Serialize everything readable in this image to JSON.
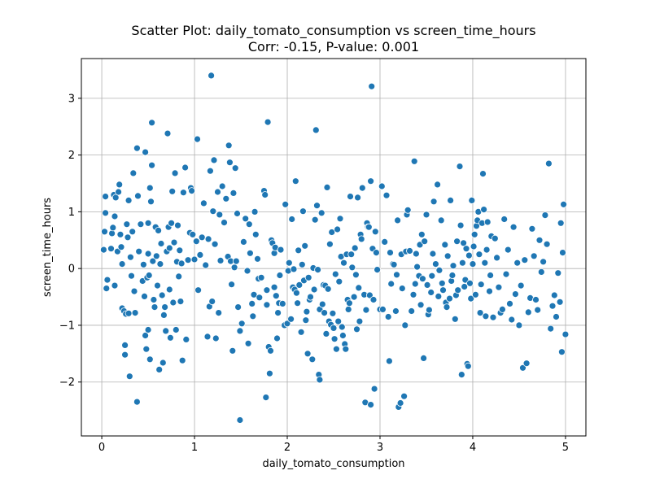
{
  "chart_data": {
    "type": "scatter",
    "title": "Scatter Plot: daily_tomato_consumption vs screen_time_hours",
    "subtitle": "Corr: -0.15, P-value: 0.001",
    "xlabel": "daily_tomato_consumption",
    "ylabel": "screen_time_hours",
    "xlim": [
      -0.22,
      5.22
    ],
    "ylim": [
      -2.95,
      3.7
    ],
    "xticks": [
      0,
      1,
      2,
      3,
      4,
      5
    ],
    "yticks": [
      -2,
      -1,
      0,
      1,
      2,
      3
    ],
    "grid": true,
    "point_color": "#1f77b4",
    "points": [
      [
        0.02,
        0.33
      ],
      [
        0.03,
        0.65
      ],
      [
        0.04,
        0.98
      ],
      [
        0.04,
        1.27
      ],
      [
        0.05,
        -0.35
      ],
      [
        0.06,
        -0.2
      ],
      [
        0.1,
        0.35
      ],
      [
        0.11,
        0.62
      ],
      [
        0.12,
        0.72
      ],
      [
        0.13,
        1.3
      ],
      [
        0.14,
        -0.3
      ],
      [
        0.14,
        0.92
      ],
      [
        0.15,
        1.25
      ],
      [
        0.17,
        0.3
      ],
      [
        0.18,
        1.35
      ],
      [
        0.19,
        1.48
      ],
      [
        0.2,
        0.6
      ],
      [
        0.21,
        0.38
      ],
      [
        0.22,
        0.08
      ],
      [
        0.22,
        -0.7
      ],
      [
        0.24,
        -0.75
      ],
      [
        0.25,
        -1.35
      ],
      [
        0.25,
        -1.52
      ],
      [
        0.26,
        -0.8
      ],
      [
        0.27,
        0.78
      ],
      [
        0.28,
        0.55
      ],
      [
        0.29,
        1.2
      ],
      [
        0.29,
        -0.79
      ],
      [
        0.3,
        -1.9
      ],
      [
        0.31,
        0.2
      ],
      [
        0.32,
        -0.13
      ],
      [
        0.33,
        0.65
      ],
      [
        0.34,
        1.68
      ],
      [
        0.35,
        -0.4
      ],
      [
        0.36,
        -0.78
      ],
      [
        0.38,
        2.12
      ],
      [
        0.38,
        -2.35
      ],
      [
        0.39,
        1.28
      ],
      [
        0.4,
        0.3
      ],
      [
        0.42,
        0.78
      ],
      [
        0.44,
        -0.22
      ],
      [
        0.45,
        0.07
      ],
      [
        0.46,
        -0.49
      ],
      [
        0.47,
        -1.18
      ],
      [
        0.47,
        2.05
      ],
      [
        0.48,
        -1.42
      ],
      [
        0.49,
        -0.16
      ],
      [
        0.5,
        0.26
      ],
      [
        0.5,
        -1.08
      ],
      [
        0.5,
        0.8
      ],
      [
        0.51,
        -0.12
      ],
      [
        0.52,
        1.42
      ],
      [
        0.52,
        -1.6
      ],
      [
        0.53,
        1.18
      ],
      [
        0.54,
        1.82
      ],
      [
        0.54,
        2.57
      ],
      [
        0.55,
        0.13
      ],
      [
        0.56,
        -0.55
      ],
      [
        0.57,
        -0.68
      ],
      [
        0.58,
        0.73
      ],
      [
        0.59,
        0.22
      ],
      [
        0.6,
        -0.3
      ],
      [
        0.61,
        0.67
      ],
      [
        0.62,
        -1.78
      ],
      [
        0.63,
        0.08
      ],
      [
        0.64,
        0.44
      ],
      [
        0.65,
        -0.47
      ],
      [
        0.66,
        -1.66
      ],
      [
        0.67,
        -0.82
      ],
      [
        0.68,
        -0.68
      ],
      [
        0.69,
        -1.1
      ],
      [
        0.7,
        0.3
      ],
      [
        0.71,
        2.38
      ],
      [
        0.72,
        0.73
      ],
      [
        0.73,
        0.36
      ],
      [
        0.73,
        -0.37
      ],
      [
        0.74,
        -1.22
      ],
      [
        0.75,
        0.8
      ],
      [
        0.76,
        1.36
      ],
      [
        0.77,
        -0.6
      ],
      [
        0.78,
        0.46
      ],
      [
        0.79,
        1.68
      ],
      [
        0.8,
        -1.08
      ],
      [
        0.81,
        0.12
      ],
      [
        0.82,
        0.76
      ],
      [
        0.83,
        -0.14
      ],
      [
        0.84,
        0.32
      ],
      [
        0.85,
        -0.58
      ],
      [
        0.86,
        0.09
      ],
      [
        0.87,
        -1.62
      ],
      [
        0.88,
        1.34
      ],
      [
        0.9,
        1.78
      ],
      [
        0.91,
        -1.25
      ],
      [
        0.93,
        0.15
      ],
      [
        0.95,
        0.63
      ],
      [
        0.96,
        1.42
      ],
      [
        0.97,
        1.37
      ],
      [
        0.98,
        0.6
      ],
      [
        1.0,
        0.16
      ],
      [
        1.02,
        0.48
      ],
      [
        1.03,
        2.28
      ],
      [
        1.04,
        -0.38
      ],
      [
        1.06,
        0.24
      ],
      [
        1.08,
        0.55
      ],
      [
        1.1,
        1.15
      ],
      [
        1.12,
        0.06
      ],
      [
        1.14,
        -1.2
      ],
      [
        1.15,
        0.52
      ],
      [
        1.16,
        -0.67
      ],
      [
        1.17,
        1.72
      ],
      [
        1.18,
        3.4
      ],
      [
        1.19,
        -0.58
      ],
      [
        1.2,
        1.01
      ],
      [
        1.21,
        1.91
      ],
      [
        1.22,
        0.43
      ],
      [
        1.23,
        -1.23
      ],
      [
        1.25,
        1.35
      ],
      [
        1.26,
        -0.78
      ],
      [
        1.27,
        0.95
      ],
      [
        1.28,
        0.14
      ],
      [
        1.3,
        1.45
      ],
      [
        1.32,
        0.81
      ],
      [
        1.34,
        1.23
      ],
      [
        1.36,
        0.21
      ],
      [
        1.37,
        2.17
      ],
      [
        1.38,
        1.87
      ],
      [
        1.39,
        0.13
      ],
      [
        1.4,
        -0.28
      ],
      [
        1.41,
        -1.45
      ],
      [
        1.42,
        1.33
      ],
      [
        1.43,
        0.02
      ],
      [
        1.44,
        1.77
      ],
      [
        1.45,
        0.13
      ],
      [
        1.46,
        0.97
      ],
      [
        1.47,
        -0.68
      ],
      [
        1.49,
        -1.1
      ],
      [
        1.49,
        -2.67
      ],
      [
        1.51,
        -0.97
      ],
      [
        1.53,
        0.47
      ],
      [
        1.55,
        0.88
      ],
      [
        1.57,
        -0.04
      ],
      [
        1.58,
        -1.32
      ],
      [
        1.59,
        0.78
      ],
      [
        1.6,
        0.27
      ],
      [
        1.62,
        -0.62
      ],
      [
        1.63,
        -0.84
      ],
      [
        1.64,
        -0.46
      ],
      [
        1.65,
        1.0
      ],
      [
        1.66,
        0.6
      ],
      [
        1.68,
        0.17
      ],
      [
        1.69,
        -0.18
      ],
      [
        1.7,
        -0.51
      ],
      [
        1.72,
        -0.16
      ],
      [
        1.75,
        1.37
      ],
      [
        1.76,
        1.3
      ],
      [
        1.77,
        -2.27
      ],
      [
        1.78,
        -0.38
      ],
      [
        1.78,
        -0.64
      ],
      [
        1.79,
        2.58
      ],
      [
        1.8,
        -1.38
      ],
      [
        1.81,
        -1.85
      ],
      [
        1.82,
        -1.45
      ],
      [
        1.83,
        0.5
      ],
      [
        1.84,
        0.45
      ],
      [
        1.86,
        -0.33
      ],
      [
        1.86,
        0.27
      ],
      [
        1.87,
        0.37
      ],
      [
        1.88,
        -0.48
      ],
      [
        1.89,
        -1.23
      ],
      [
        1.9,
        -0.78
      ],
      [
        1.91,
        -0.61
      ],
      [
        1.92,
        -0.12
      ],
      [
        1.93,
        0.33
      ],
      [
        1.95,
        -0.62
      ],
      [
        1.97,
        -1.0
      ],
      [
        1.98,
        1.13
      ],
      [
        2.0,
        -0.97
      ],
      [
        2.01,
        -0.04
      ],
      [
        2.02,
        0.1
      ],
      [
        2.04,
        -0.89
      ],
      [
        2.05,
        0.87
      ],
      [
        2.06,
        -0.33
      ],
      [
        2.07,
        -0.01
      ],
      [
        2.08,
        -0.37
      ],
      [
        2.09,
        1.54
      ],
      [
        2.1,
        -0.43
      ],
      [
        2.11,
        -0.61
      ],
      [
        2.12,
        0.32
      ],
      [
        2.13,
        -0.29
      ],
      [
        2.15,
        -1.12
      ],
      [
        2.16,
        0.07
      ],
      [
        2.17,
        1.01
      ],
      [
        2.18,
        -0.21
      ],
      [
        2.19,
        0.4
      ],
      [
        2.2,
        -0.91
      ],
      [
        2.21,
        -0.76
      ],
      [
        2.22,
        -1.5
      ],
      [
        2.23,
        -0.16
      ],
      [
        2.24,
        -0.55
      ],
      [
        2.25,
        -0.5
      ],
      [
        2.27,
        -1.6
      ],
      [
        2.28,
        0.01
      ],
      [
        2.29,
        -0.37
      ],
      [
        2.3,
        0.86
      ],
      [
        2.31,
        2.44
      ],
      [
        2.32,
        1.11
      ],
      [
        2.33,
        -0.02
      ],
      [
        2.34,
        -1.87
      ],
      [
        2.35,
        -1.96
      ],
      [
        2.35,
        -0.72
      ],
      [
        2.37,
        0.98
      ],
      [
        2.38,
        -0.63
      ],
      [
        2.39,
        -0.29
      ],
      [
        2.4,
        -0.78
      ],
      [
        2.41,
        -0.3
      ],
      [
        2.42,
        -1.15
      ],
      [
        2.43,
        1.43
      ],
      [
        2.44,
        -0.36
      ],
      [
        2.45,
        -0.93
      ],
      [
        2.46,
        0.43
      ],
      [
        2.47,
        -0.99
      ],
      [
        2.48,
        0.64
      ],
      [
        2.49,
        -0.79
      ],
      [
        2.5,
        -1.05
      ],
      [
        2.51,
        -1.24
      ],
      [
        2.52,
        -0.1
      ],
      [
        2.53,
        -1.42
      ],
      [
        2.54,
        0.69
      ],
      [
        2.55,
        -0.93
      ],
      [
        2.56,
        -0.23
      ],
      [
        2.57,
        0.88
      ],
      [
        2.58,
        0.21
      ],
      [
        2.59,
        -1.03
      ],
      [
        2.6,
        -1.18
      ],
      [
        2.61,
        0.1
      ],
      [
        2.62,
        -1.33
      ],
      [
        2.63,
        -1.42
      ],
      [
        2.64,
        0.25
      ],
      [
        2.65,
        -0.55
      ],
      [
        2.66,
        -0.72
      ],
      [
        2.67,
        -0.61
      ],
      [
        2.68,
        1.27
      ],
      [
        2.69,
        0.25
      ],
      [
        2.7,
        0.02
      ],
      [
        2.72,
        -0.5
      ],
      [
        2.73,
        0.36
      ],
      [
        2.74,
        -0.11
      ],
      [
        2.75,
        -1.07
      ],
      [
        2.76,
        1.25
      ],
      [
        2.77,
        -0.34
      ],
      [
        2.78,
        -0.93
      ],
      [
        2.79,
        0.6
      ],
      [
        2.8,
        0.52
      ],
      [
        2.81,
        1.42
      ],
      [
        2.83,
        -0.46
      ],
      [
        2.84,
        -2.36
      ],
      [
        2.85,
        -0.73
      ],
      [
        2.86,
        0.8
      ],
      [
        2.87,
        0.73
      ],
      [
        2.88,
        0.73
      ],
      [
        2.89,
        -0.47
      ],
      [
        2.9,
        -2.4
      ],
      [
        2.9,
        1.54
      ],
      [
        2.91,
        3.21
      ],
      [
        2.92,
        0.35
      ],
      [
        2.93,
        -0.55
      ],
      [
        2.94,
        -2.12
      ],
      [
        2.95,
        0.65
      ],
      [
        2.96,
        0.28
      ],
      [
        2.97,
        -0.02
      ],
      [
        3.0,
        -0.72
      ],
      [
        3.02,
        1.45
      ],
      [
        3.03,
        -0.72
      ],
      [
        3.05,
        0.47
      ],
      [
        3.07,
        1.29
      ],
      [
        3.09,
        -0.85
      ],
      [
        3.1,
        -1.63
      ],
      [
        3.11,
        0.28
      ],
      [
        3.12,
        -0.27
      ],
      [
        3.14,
        0.08
      ],
      [
        3.15,
        0.07
      ],
      [
        3.17,
        -0.75
      ],
      [
        3.18,
        -0.11
      ],
      [
        3.19,
        0.85
      ],
      [
        3.2,
        -2.44
      ],
      [
        3.22,
        -2.37
      ],
      [
        3.23,
        0.25
      ],
      [
        3.24,
        -0.35
      ],
      [
        3.26,
        -2.25
      ],
      [
        3.27,
        -1.0
      ],
      [
        3.28,
        0.3
      ],
      [
        3.29,
        0.95
      ],
      [
        3.3,
        1.03
      ],
      [
        3.32,
        0.31
      ],
      [
        3.34,
        -0.75
      ],
      [
        3.36,
        -0.46
      ],
      [
        3.37,
        1.89
      ],
      [
        3.38,
        -0.27
      ],
      [
        3.39,
        0.26
      ],
      [
        3.4,
        0.03
      ],
      [
        3.42,
        -0.13
      ],
      [
        3.43,
        0.42
      ],
      [
        3.44,
        -0.64
      ],
      [
        3.45,
        0.6
      ],
      [
        3.46,
        -0.18
      ],
      [
        3.47,
        -1.58
      ],
      [
        3.48,
        0.48
      ],
      [
        3.5,
        0.95
      ],
      [
        3.51,
        -0.29
      ],
      [
        3.52,
        -0.81
      ],
      [
        3.53,
        -0.73
      ],
      [
        3.55,
        -0.42
      ],
      [
        3.56,
        -0.13
      ],
      [
        3.57,
        0.26
      ],
      [
        3.58,
        1.18
      ],
      [
        3.6,
        0.08
      ],
      [
        3.62,
        1.48
      ],
      [
        3.63,
        -0.49
      ],
      [
        3.64,
        -0.03
      ],
      [
        3.66,
        0.85
      ],
      [
        3.67,
        -0.26
      ],
      [
        3.68,
        -0.38
      ],
      [
        3.7,
        0.42
      ],
      [
        3.71,
        -0.6
      ],
      [
        3.72,
        -0.68
      ],
      [
        3.73,
        0.22
      ],
      [
        3.75,
        -0.53
      ],
      [
        3.76,
        1.2
      ],
      [
        3.77,
        -0.22
      ],
      [
        3.78,
        -0.12
      ],
      [
        3.79,
        0.05
      ],
      [
        3.81,
        -0.89
      ],
      [
        3.82,
        -0.47
      ],
      [
        3.83,
        0.48
      ],
      [
        3.84,
        -0.38
      ],
      [
        3.86,
        1.8
      ],
      [
        3.87,
        0.76
      ],
      [
        3.88,
        -1.87
      ],
      [
        3.89,
        0.1
      ],
      [
        3.9,
        0.45
      ],
      [
        3.91,
        -0.32
      ],
      [
        3.92,
        -0.2
      ],
      [
        3.93,
        0.35
      ],
      [
        3.94,
        -1.68
      ],
      [
        3.95,
        -1.72
      ],
      [
        3.96,
        0.23
      ],
      [
        3.97,
        -0.26
      ],
      [
        3.98,
        -0.53
      ],
      [
        3.99,
        1.2
      ],
      [
        4.0,
        0.08
      ],
      [
        4.01,
        0.39
      ],
      [
        4.02,
        0.6
      ],
      [
        4.03,
        -0.46
      ],
      [
        4.04,
        0.75
      ],
      [
        4.05,
        0.85
      ],
      [
        4.06,
        1.0
      ],
      [
        4.07,
        0.25
      ],
      [
        4.08,
        -0.78
      ],
      [
        4.09,
        -0.28
      ],
      [
        4.1,
        0.8
      ],
      [
        4.11,
        1.67
      ],
      [
        4.12,
        1.04
      ],
      [
        4.13,
        0.1
      ],
      [
        4.14,
        -0.84
      ],
      [
        4.15,
        0.33
      ],
      [
        4.16,
        0.82
      ],
      [
        4.18,
        -0.4
      ],
      [
        4.19,
        -0.12
      ],
      [
        4.2,
        0.57
      ],
      [
        4.22,
        -0.86
      ],
      [
        4.24,
        0.53
      ],
      [
        4.26,
        0.19
      ],
      [
        4.28,
        -0.33
      ],
      [
        4.3,
        -0.78
      ],
      [
        4.32,
        -0.72
      ],
      [
        4.34,
        0.87
      ],
      [
        4.36,
        -0.1
      ],
      [
        4.38,
        0.33
      ],
      [
        4.4,
        -0.62
      ],
      [
        4.42,
        -0.9
      ],
      [
        4.44,
        0.73
      ],
      [
        4.46,
        -0.45
      ],
      [
        4.48,
        0.1
      ],
      [
        4.5,
        -1.0
      ],
      [
        4.52,
        -0.3
      ],
      [
        4.54,
        -1.75
      ],
      [
        4.56,
        0.15
      ],
      [
        4.58,
        -1.67
      ],
      [
        4.6,
        -0.77
      ],
      [
        4.62,
        -0.52
      ],
      [
        4.64,
        0.7
      ],
      [
        4.66,
        0.22
      ],
      [
        4.68,
        -0.55
      ],
      [
        4.7,
        -0.73
      ],
      [
        4.72,
        0.5
      ],
      [
        4.74,
        -0.06
      ],
      [
        4.76,
        0.12
      ],
      [
        4.78,
        0.94
      ],
      [
        4.8,
        0.43
      ],
      [
        4.82,
        1.85
      ],
      [
        4.84,
        -1.06
      ],
      [
        4.86,
        -0.66
      ],
      [
        4.88,
        -0.47
      ],
      [
        4.9,
        -0.85
      ],
      [
        4.92,
        -0.08
      ],
      [
        4.94,
        -0.59
      ],
      [
        4.95,
        0.8
      ],
      [
        4.96,
        -1.47
      ],
      [
        4.97,
        0.28
      ],
      [
        4.98,
        1.13
      ],
      [
        5.0,
        -1.16
      ]
    ]
  }
}
